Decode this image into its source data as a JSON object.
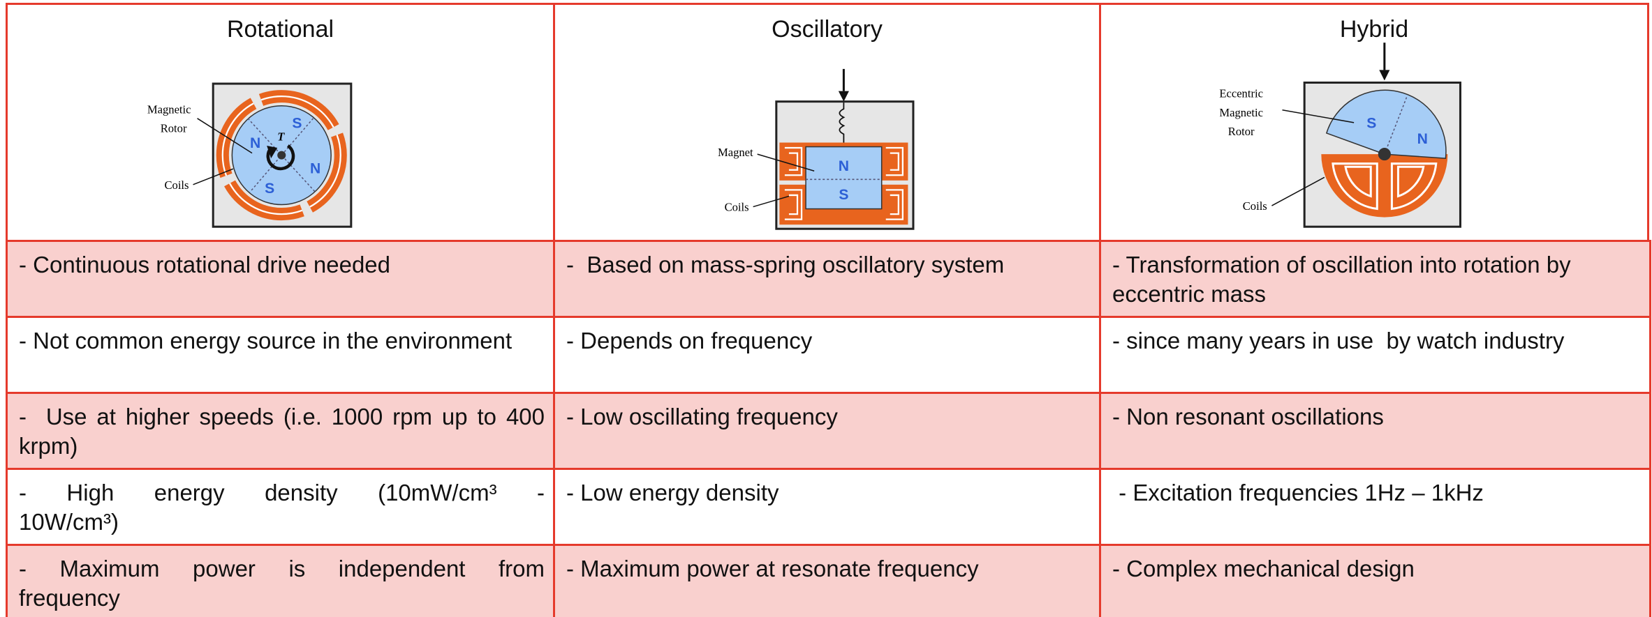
{
  "header": {
    "columns": [
      {
        "title": "Rotational",
        "labels": [
          "Magnetic",
          "Rotor",
          "Coils",
          "N",
          "S",
          "N",
          "S",
          "T"
        ]
      },
      {
        "title": "Oscillatory",
        "labels": [
          "Magnet",
          "Coils",
          "N",
          "S"
        ]
      },
      {
        "title": "Hybrid",
        "labels": [
          "Eccentric",
          "Magnetic",
          "Rotor",
          "Coils",
          "S",
          "N"
        ]
      }
    ]
  },
  "table": {
    "rows": [
      [
        "- Continuous rotational drive needed",
        "-  Based on mass-spring oscillatory system",
        "- Transformation of oscillation into rotation by eccentric mass"
      ],
      [
        "- Not common energy source in the environment",
        "- Depends on frequency",
        "- since many years in use  by watch industry"
      ],
      [
        "-  Use at higher speeds (i.e. 1000 rpm up to 400 krpm)",
        "- Low oscillating frequency",
        "- Non resonant oscillations"
      ],
      [
        "-   High   energy   density   (10mW/cm³   - 10W/cm³)",
        "- Low energy density",
        " - Excitation frequencies 1Hz – 1kHz"
      ],
      [
        "-  Maximum  power  is  independent  from frequency",
        "- Maximum power at resonate frequency",
        "- Complex mechanical design"
      ]
    ]
  }
}
